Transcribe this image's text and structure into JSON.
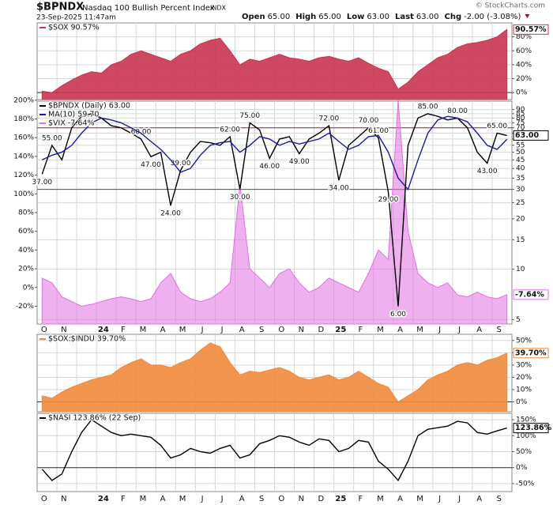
{
  "header": {
    "symbol": "$BPNDX",
    "name": "Nasdaq 100 Bullish Percent Index",
    "exchange": "INDX",
    "date": "23-Sep-2025 11:47am",
    "quote": [
      {
        "label": "Open",
        "value": "65.00"
      },
      {
        "label": "High",
        "value": "65.00"
      },
      {
        "label": "Low",
        "value": "63.00"
      },
      {
        "label": "Last",
        "value": "63.00"
      },
      {
        "label": "Chg",
        "value": "-2.00 (-3.08%)"
      }
    ],
    "credit": "© StockCharts.com"
  },
  "chart_data": [
    {
      "type": "area",
      "ylim": [
        -10,
        100
      ],
      "yticks": [
        {
          "value": 0,
          "label": "0%"
        },
        {
          "value": 20,
          "label": "20%"
        },
        {
          "value": 40,
          "label": "40%"
        },
        {
          "value": 60,
          "label": "60%"
        },
        {
          "value": 80,
          "label": "80%"
        }
      ],
      "zero_line": true,
      "series": [
        {
          "name": "$SOX 90.57%",
          "color": "#c8344f",
          "last_label": "90.57%",
          "values": [
            2,
            0,
            10,
            18,
            25,
            30,
            28,
            40,
            45,
            55,
            60,
            55,
            50,
            45,
            55,
            60,
            70,
            75,
            78,
            60,
            40,
            48,
            45,
            50,
            55,
            50,
            48,
            45,
            50,
            52,
            48,
            45,
            50,
            42,
            35,
            30,
            5,
            15,
            30,
            40,
            50,
            55,
            65,
            70,
            72,
            75,
            80,
            90.57
          ]
        }
      ]
    },
    {
      "type": "line",
      "log_scale": true,
      "ylim": [
        4.7,
        101
      ],
      "yticks": [
        5,
        10,
        15,
        20,
        25,
        30,
        35,
        40,
        45,
        50,
        55,
        60,
        65,
        70,
        75,
        80,
        85,
        90
      ],
      "y2lim": [
        -39,
        199
      ],
      "y2ticks": [
        {
          "value": -20,
          "label": "-20%"
        },
        {
          "value": 0,
          "label": "0%"
        },
        {
          "value": 20,
          "label": "20%"
        },
        {
          "value": 40,
          "label": "40%"
        },
        {
          "value": 60,
          "label": "60%"
        },
        {
          "value": 80,
          "label": "80%"
        },
        {
          "value": 100,
          "label": "100%"
        },
        {
          "value": 120,
          "label": "120%"
        },
        {
          "value": 140,
          "label": "140%"
        },
        {
          "value": 160,
          "label": "160%"
        },
        {
          "value": 180,
          "label": "180%"
        },
        {
          "value": 200,
          "label": "200%"
        }
      ],
      "hlines": [
        {
          "value": 70,
          "color": "#b0202a"
        },
        {
          "value": 30,
          "color": "#1e7a1e"
        }
      ],
      "series": [
        {
          "name": "$VIX -7.64%",
          "color": "#e070e0",
          "kind": "area",
          "axis": "y2",
          "last_label": "-7.64%",
          "values": [
            10,
            5,
            -10,
            -15,
            -20,
            -18,
            -15,
            -12,
            -10,
            -12,
            -15,
            -12,
            5,
            15,
            -5,
            -12,
            -15,
            -12,
            -5,
            5,
            110,
            20,
            10,
            0,
            15,
            20,
            5,
            -5,
            0,
            10,
            5,
            0,
            -5,
            15,
            40,
            30,
            200,
            60,
            15,
            5,
            0,
            5,
            -8,
            -10,
            -5,
            -10,
            -12,
            -7.64
          ]
        },
        {
          "name": "$BPNDX (Daily) 63.00",
          "color": "#000000",
          "last_label": "63.00",
          "values": [
            37,
            55,
            45,
            70,
            82,
            85,
            80,
            72,
            70,
            65,
            60,
            47,
            50,
            24,
            39,
            50,
            58,
            57,
            55,
            62,
            30,
            75,
            68,
            46,
            60,
            62,
            49,
            60,
            65,
            72,
            34,
            55,
            62,
            70,
            61,
            29,
            6,
            55,
            80,
            85,
            82,
            78,
            80,
            70,
            50,
            43,
            65,
            63
          ],
          "value_labels": [
            "37.00",
            "55.00",
            null,
            null,
            null,
            null,
            null,
            null,
            null,
            null,
            "60.00",
            "47.00",
            null,
            "24.00",
            "39.00",
            null,
            null,
            null,
            null,
            "62.00",
            "30.00",
            "75.00",
            null,
            "46.00",
            null,
            null,
            "49.00",
            null,
            null,
            "72.00",
            "34.00",
            null,
            null,
            "70.00",
            "61.00",
            "29.00",
            "6.00",
            null,
            null,
            "85.00",
            null,
            null,
            "80.00",
            null,
            null,
            "43.00",
            "65.00",
            null
          ]
        },
        {
          "name": "MA(10) 59.70",
          "color": "#1a1a9e",
          "values": [
            45,
            48,
            50,
            55,
            65,
            75,
            80,
            78,
            75,
            70,
            65,
            58,
            52,
            45,
            38,
            40,
            48,
            55,
            57,
            58,
            50,
            55,
            62,
            60,
            55,
            58,
            56,
            58,
            60,
            65,
            58,
            52,
            55,
            62,
            63,
            50,
            35,
            30,
            45,
            65,
            78,
            82,
            80,
            76,
            65,
            55,
            52,
            59.7
          ]
        }
      ],
      "x_labels": [
        "O",
        "N",
        null,
        "24",
        "F",
        "M",
        "A",
        "M",
        "J",
        "J",
        "A",
        "S",
        "O",
        "N",
        "D",
        "25",
        "F",
        "M",
        "A",
        "M",
        "J",
        "J",
        "A",
        "S"
      ]
    },
    {
      "type": "area",
      "ylim": [
        -8,
        55
      ],
      "yticks": [
        {
          "value": 0,
          "label": "0%"
        },
        {
          "value": 10,
          "label": "10%"
        },
        {
          "value": 20,
          "label": "20%"
        },
        {
          "value": 30,
          "label": "30%"
        },
        {
          "value": 40,
          "label": "40%"
        },
        {
          "value": 50,
          "label": "50%"
        }
      ],
      "zero_line": true,
      "series": [
        {
          "name": "$SOX:$INDU 39.70%",
          "color": "#f08a3c",
          "last_label": "39.70%",
          "values": [
            5,
            3,
            8,
            12,
            15,
            18,
            20,
            22,
            28,
            32,
            35,
            30,
            30,
            28,
            32,
            35,
            42,
            48,
            45,
            32,
            22,
            25,
            24,
            26,
            28,
            25,
            20,
            18,
            20,
            22,
            18,
            20,
            25,
            20,
            15,
            12,
            0,
            5,
            10,
            18,
            22,
            25,
            30,
            32,
            30,
            34,
            36,
            39.7
          ]
        }
      ]
    },
    {
      "type": "line",
      "ylim": [
        -75,
        170
      ],
      "yticks": [
        {
          "value": -50,
          "label": "-50%"
        },
        {
          "value": 0,
          "label": "0%"
        },
        {
          "value": 50,
          "label": "50%"
        },
        {
          "value": 100,
          "label": "100%"
        },
        {
          "value": 150,
          "label": "150%"
        }
      ],
      "zero_line": true,
      "series": [
        {
          "name": "$NASI 123.86% (22 Sep)",
          "color": "#000000",
          "last_label": "123.86%",
          "values": [
            -5,
            -40,
            -20,
            50,
            110,
            150,
            130,
            110,
            100,
            105,
            100,
            95,
            70,
            30,
            40,
            60,
            50,
            45,
            60,
            70,
            30,
            40,
            75,
            85,
            100,
            95,
            80,
            70,
            90,
            85,
            50,
            60,
            85,
            80,
            20,
            -5,
            -40,
            20,
            100,
            120,
            125,
            130,
            145,
            140,
            110,
            105,
            115,
            123.86
          ]
        }
      ],
      "x_labels": [
        "O",
        "N",
        null,
        "24",
        "F",
        "M",
        "A",
        "M",
        "J",
        "J",
        "A",
        "S",
        "O",
        "N",
        "D",
        "25",
        "F",
        "M",
        "A",
        "M",
        "J",
        "J",
        "A",
        "S"
      ]
    }
  ]
}
